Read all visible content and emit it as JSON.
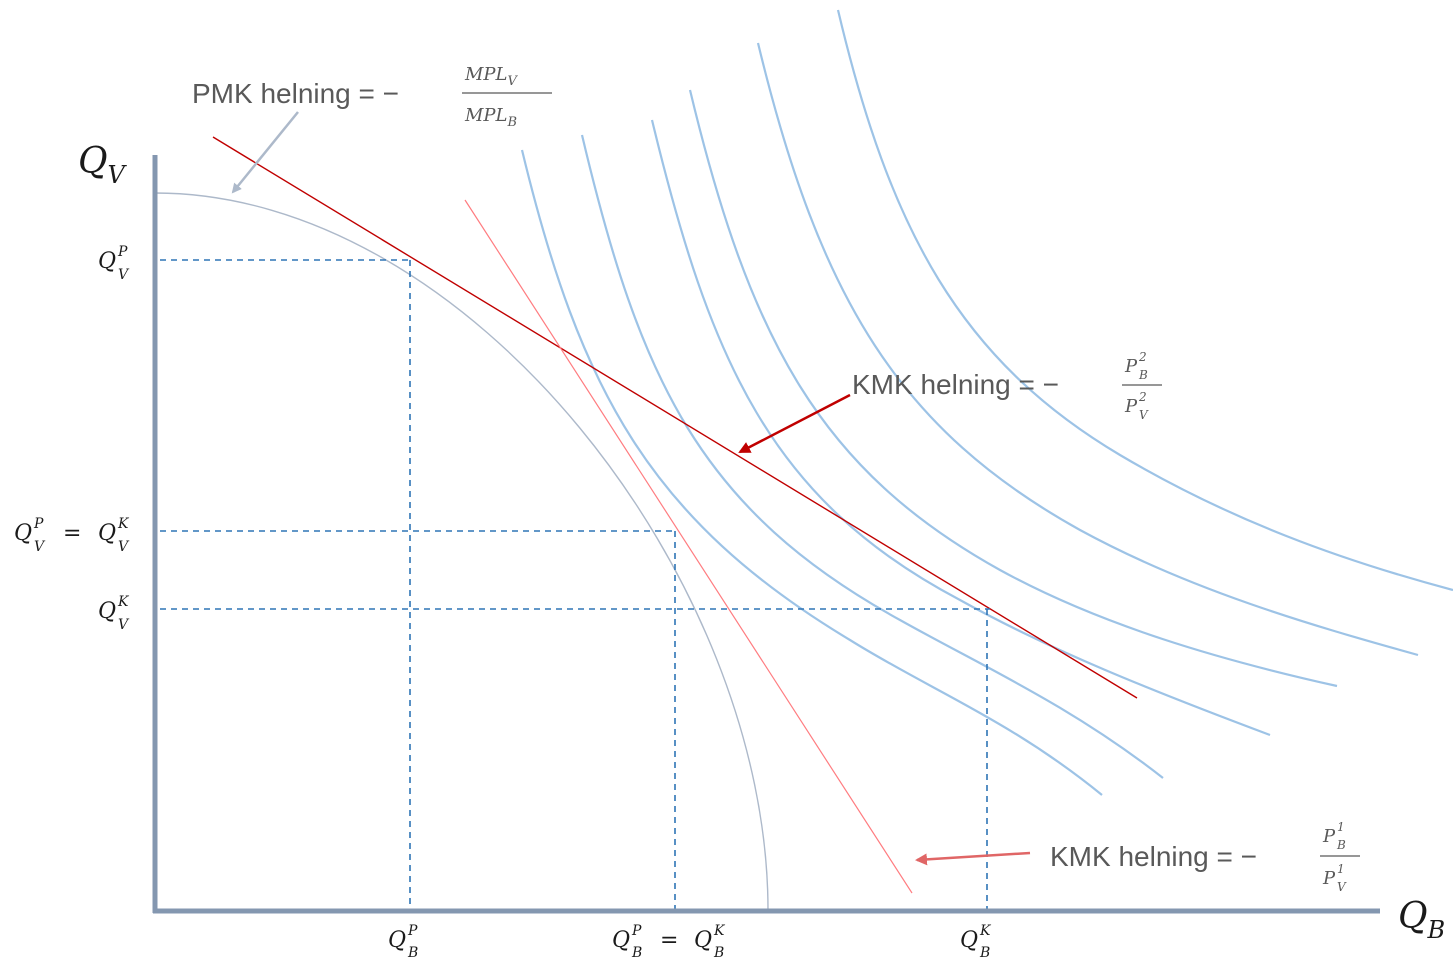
{
  "axes": {
    "y_label": {
      "base": "Q",
      "sub": "V"
    },
    "x_label": {
      "base": "Q",
      "sub": "B"
    }
  },
  "y_ticks": [
    {
      "base": "Q",
      "sup": "P",
      "sub": "V"
    },
    {
      "base": "Q",
      "sup": "P",
      "sub": "V",
      "eq": "=",
      "base2": "Q",
      "sup2": "K",
      "sub2": "V"
    },
    {
      "base": "Q",
      "sup": "K",
      "sub": "V"
    }
  ],
  "x_ticks": [
    {
      "base": "Q",
      "sup": "P",
      "sub": "B"
    },
    {
      "base": "Q",
      "sup": "P",
      "sub": "B",
      "eq": "=",
      "base2": "Q",
      "sup2": "K",
      "sub2": "B"
    },
    {
      "base": "Q",
      "sup": "K",
      "sub": "B"
    }
  ],
  "annotations": {
    "pmk": {
      "text": "PMK helning = −",
      "num": {
        "base": "MPL",
        "sub": "V"
      },
      "den": {
        "base": "MPL",
        "sub": "B"
      }
    },
    "kmk2": {
      "text": "KMK helning = −",
      "num": {
        "base": "P",
        "sup": "2",
        "sub": "B"
      },
      "den": {
        "base": "P",
        "sup": "2",
        "sub": "V"
      }
    },
    "kmk1": {
      "text": "KMK helning = −",
      "num": {
        "base": "P",
        "sup": "1",
        "sub": "B"
      },
      "den": {
        "base": "P",
        "sup": "1",
        "sub": "V"
      }
    }
  },
  "colors": {
    "axis": "#8497b0",
    "ppf": "#adb9ca",
    "indifference": "#9dc3e6",
    "price_line_dark": "#c00000",
    "price_line_light": "#ff7c80",
    "guides": "#2e75b6",
    "arrow_pmk": "#adb9ca",
    "arrow_kmk2": "#c00000",
    "arrow_kmk1": "#e06666",
    "label_text": "#595959"
  }
}
